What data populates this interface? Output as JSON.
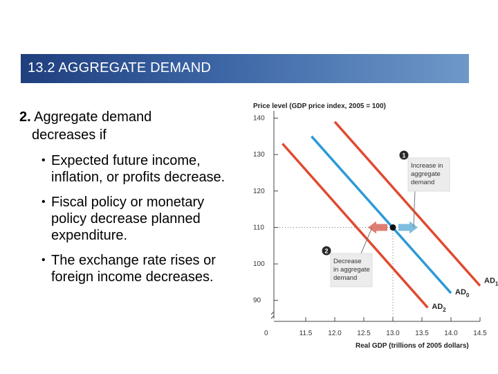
{
  "header": {
    "title": "13.2  AGGREGATE DEMAND"
  },
  "content": {
    "heading_num": "2.",
    "heading_line1": " Aggregate demand",
    "heading_line2": "decreases if",
    "bullets": [
      "Expected future income, inflation, or profits decrease.",
      "Fiscal policy or monetary policy decrease planned expenditure.",
      "The exchange rate rises or foreign income decreases."
    ]
  },
  "colors": {
    "ad0": "#2a9ad6",
    "ad1": "#e0492f",
    "ad2": "#e0492f",
    "banner": "#2b4d8f",
    "note_bg": "#ececec"
  },
  "chart_data": {
    "type": "line",
    "ylabel": "Price level (GDP price index, 2005 = 100)",
    "xlabel": "Real GDP (trillions of 2005 dollars)",
    "x_ticks": [
      "11.5",
      "12.0",
      "12.5",
      "13.0",
      "13.5",
      "14.0",
      "14.5"
    ],
    "y_ticks": [
      "90",
      "100",
      "110",
      "120",
      "130",
      "140"
    ],
    "origin_label": "0",
    "xlim": [
      11.0,
      14.5
    ],
    "ylim": [
      85,
      142
    ],
    "series": [
      {
        "name": "AD",
        "sub": "0",
        "color": "#2a9ad6",
        "points": [
          [
            11.6,
            135
          ],
          [
            14.0,
            92
          ]
        ]
      },
      {
        "name": "AD",
        "sub": "1",
        "color": "#e0492f",
        "points": [
          [
            12.0,
            139
          ],
          [
            14.5,
            94
          ]
        ]
      },
      {
        "name": "AD",
        "sub": "2",
        "color": "#e0492f",
        "points": [
          [
            11.1,
            133
          ],
          [
            13.6,
            88
          ]
        ]
      }
    ],
    "equilibrium": {
      "x": 13.0,
      "y": 110
    },
    "annotations": [
      {
        "badge": "1",
        "lines": [
          "Increase in",
          "aggregate",
          "demand"
        ]
      },
      {
        "badge": "2",
        "lines": [
          "Decrease",
          "in aggregate",
          "demand"
        ]
      }
    ]
  }
}
